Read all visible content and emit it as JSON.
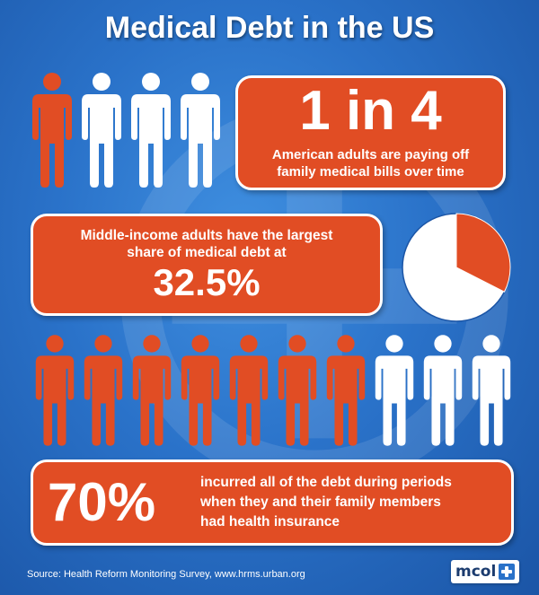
{
  "title": "Medical Debt in the US",
  "stat1": {
    "value": "1 in 4",
    "description_line1": "American adults are paying off",
    "description_line2": "family medical bills over time",
    "figures": [
      "highlighted",
      "plain",
      "plain",
      "plain"
    ]
  },
  "stat2": {
    "line1": "Middle-income adults have the largest",
    "line2": "share of medical debt at",
    "value": "32.5%",
    "pie_fraction": 0.325
  },
  "stat3": {
    "value": "70%",
    "line1": "incurred all of the debt during periods",
    "line2": "when they and their family members",
    "line3": "had health insurance",
    "figures": [
      "highlighted",
      "highlighted",
      "highlighted",
      "highlighted",
      "highlighted",
      "highlighted",
      "highlighted",
      "plain",
      "plain",
      "plain"
    ]
  },
  "source": "Source:  Health Reform Monitoring Survey, www.hrms.urban.org",
  "logo": {
    "text": "mcol",
    "icon": "medical-cross-icon"
  },
  "colors": {
    "accent": "#e14d24",
    "background": "#2a72c9",
    "figure_plain": "#ffffff",
    "figure_highlighted": "#e14d24"
  }
}
